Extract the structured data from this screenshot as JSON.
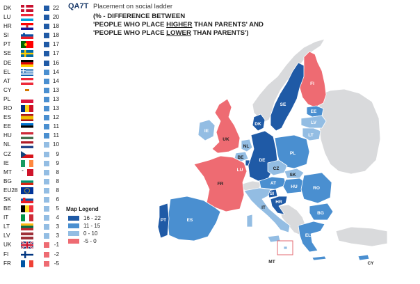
{
  "header": {
    "question_code": "QA7T",
    "question_title": "Placement on social ladder",
    "subtitle_line1": "(% - DIFFERENCE BETWEEN",
    "subtitle_line2_pre": "'PEOPLE WHO PLACE ",
    "subtitle_line2_ul": "HIGHER",
    "subtitle_line2_post": " THAN PARENTS'   AND",
    "subtitle_line3_pre": "'PEOPLE WHO PLACE ",
    "subtitle_line3_ul": "LOWER",
    "subtitle_line3_post": " THAN PARENTS')"
  },
  "colors": {
    "dark_blue": "#1f5aa6",
    "mid_blue": "#4a8fd0",
    "light_blue": "#93bde3",
    "red": "#ee6b72",
    "grey": "#d9dadc"
  },
  "countries": [
    {
      "code": "DK",
      "value": "22",
      "bucket": "dark",
      "flag": "flag-dk"
    },
    {
      "code": "LU",
      "value": "20",
      "bucket": "dark",
      "flag": "flag-lu"
    },
    {
      "code": "HR",
      "value": "18",
      "bucket": "dark",
      "flag": "flag-hr"
    },
    {
      "code": "SI",
      "value": "18",
      "bucket": "dark",
      "flag": "flag-si"
    },
    {
      "code": "PT",
      "value": "17",
      "bucket": "dark",
      "flag": "flag-pt"
    },
    {
      "code": "SE",
      "value": "17",
      "bucket": "dark",
      "flag": "flag-se"
    },
    {
      "code": "DE",
      "value": "16",
      "bucket": "dark",
      "flag": "flag-de"
    },
    {
      "code": "EL",
      "value": "14",
      "bucket": "mid",
      "flag": "flag-el"
    },
    {
      "code": "AT",
      "value": "14",
      "bucket": "mid",
      "flag": "flag-at"
    },
    {
      "code": "CY",
      "value": "13",
      "bucket": "mid",
      "flag": "flag-cy"
    },
    {
      "code": "PL",
      "value": "13",
      "bucket": "mid",
      "flag": "flag-pl"
    },
    {
      "code": "RO",
      "value": "13",
      "bucket": "mid",
      "flag": "flag-ro"
    },
    {
      "code": "ES",
      "value": "12",
      "bucket": "mid",
      "flag": "flag-es"
    },
    {
      "code": "EE",
      "value": "11",
      "bucket": "mid",
      "flag": "flag-ee"
    },
    {
      "code": "HU",
      "value": "11",
      "bucket": "mid",
      "flag": "flag-hu"
    },
    {
      "code": "NL",
      "value": "10",
      "bucket": "light",
      "flag": "flag-nl"
    },
    {
      "code": "CZ",
      "value": "9",
      "bucket": "light",
      "flag": "flag-cz"
    },
    {
      "code": "IE",
      "value": "9",
      "bucket": "light",
      "flag": "flag-ie"
    },
    {
      "code": "MT",
      "value": "8",
      "bucket": "light",
      "flag": "flag-mt"
    },
    {
      "code": "BG",
      "value": "8",
      "bucket": "light",
      "flag": "flag-bg"
    },
    {
      "code": "EU28",
      "value": "8",
      "bucket": "light",
      "flag": "flag-eu"
    },
    {
      "code": "SK",
      "value": "6",
      "bucket": "light",
      "flag": "flag-sk"
    },
    {
      "code": "BE",
      "value": "5",
      "bucket": "light",
      "flag": "flag-be"
    },
    {
      "code": "IT",
      "value": "4",
      "bucket": "light",
      "flag": "flag-it"
    },
    {
      "code": "LT",
      "value": "3",
      "bucket": "light",
      "flag": "flag-lt"
    },
    {
      "code": "LV",
      "value": "3",
      "bucket": "light",
      "flag": "flag-lv"
    },
    {
      "code": "UK",
      "value": "-1",
      "bucket": "red",
      "flag": "flag-uk"
    },
    {
      "code": "FI",
      "value": "-2",
      "bucket": "red",
      "flag": "flag-fi"
    },
    {
      "code": "FR",
      "value": "-5",
      "bucket": "red",
      "flag": "flag-fr"
    }
  ],
  "legend": {
    "title": "Map Legend",
    "items": [
      {
        "label": "16 - 22",
        "bucket": "dark"
      },
      {
        "label": "11 - 15",
        "bucket": "mid"
      },
      {
        "label": "0 - 10",
        "bucket": "light"
      },
      {
        "label": "-5 - 0",
        "bucket": "red"
      }
    ]
  },
  "map": {
    "labels": {
      "FI": "FI",
      "SE": "SE",
      "EE": "EE",
      "LV": "LV",
      "LT": "LT",
      "DK": "DK",
      "IE": "IE",
      "UK": "UK",
      "NL": "NL",
      "BE": "BE",
      "LU": "LU",
      "DE": "DE",
      "PL": "PL",
      "CZ": "CZ",
      "SK": "SK",
      "AT": "AT",
      "HU": "HU",
      "RO": "RO",
      "SI": "SI",
      "HR": "HR",
      "FR": "FR",
      "PT": "PT",
      "ES": "ES",
      "IT": "IT",
      "BG": "BG",
      "EL": "EL",
      "MT": "MT",
      "CY": "CY"
    }
  }
}
